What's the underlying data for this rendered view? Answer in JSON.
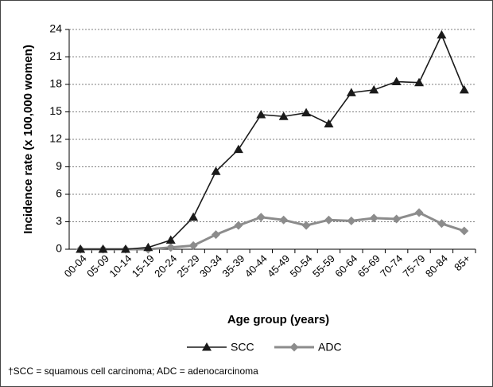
{
  "chart_data": {
    "type": "line",
    "xlabel": "Age group (years)",
    "ylabel": "Incidence rate (x 100,000 women)",
    "categories": [
      "00-04",
      "05-09",
      "10-14",
      "15-19",
      "20-24",
      "25-29",
      "30-34",
      "35-39",
      "40-44",
      "45-49",
      "50-54",
      "55-59",
      "60-64",
      "65-69",
      "70-74",
      "75-79",
      "80-84",
      "85+"
    ],
    "series": [
      {
        "name": "SCC",
        "color": "#1a1a1a",
        "marker": "triangle",
        "values": [
          0,
          0,
          0,
          0.2,
          1.0,
          3.5,
          8.5,
          10.9,
          14.7,
          14.5,
          14.9,
          13.7,
          17.1,
          17.4,
          18.3,
          18.2,
          23.4,
          17.4
        ]
      },
      {
        "name": "ADC",
        "color": "#8c8c8c",
        "marker": "diamond",
        "values": [
          0,
          0,
          0,
          0,
          0.2,
          0.4,
          1.6,
          2.6,
          3.5,
          3.2,
          2.6,
          3.2,
          3.1,
          3.4,
          3.3,
          4.0,
          2.8,
          2.0
        ]
      }
    ],
    "ylim": [
      0,
      24
    ],
    "yticks": [
      0,
      3,
      6,
      9,
      12,
      15,
      18,
      21,
      24
    ],
    "grid": true,
    "footnote": "†SCC = squamous cell carcinoma; ADC = adenocarcinoma"
  }
}
